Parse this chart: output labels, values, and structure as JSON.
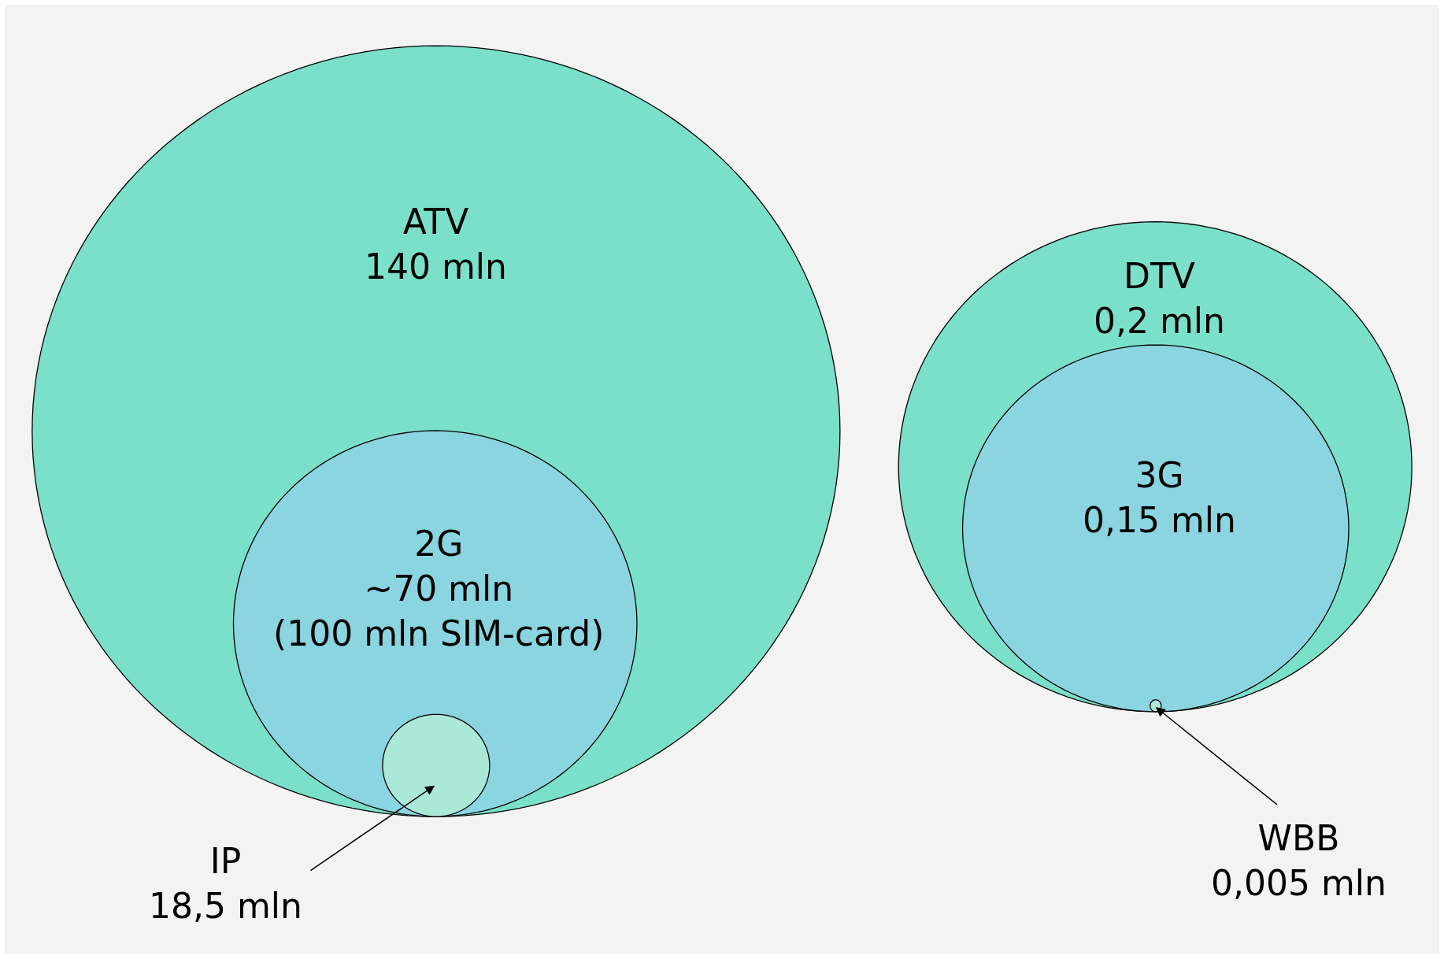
{
  "chart_data": {
    "type": "other",
    "categories": [
      "ATV",
      "2G",
      "IP",
      "DTV",
      "3G",
      "WBB"
    ],
    "values": [
      140,
      70,
      18.5,
      0.2,
      0.15,
      0.005
    ],
    "value_labels": [
      "140 mln",
      "~70 mln\n(100 mln SIM-card)",
      "18,5 mln",
      "0,2 mln",
      "0,15 mln",
      "0,005 mln"
    ],
    "colors": [
      "#7be0c9",
      "#8ad5e0",
      "#aae8d8",
      "#7be0c9",
      "#8ad5e0",
      "#aae8d8"
    ]
  }
}
